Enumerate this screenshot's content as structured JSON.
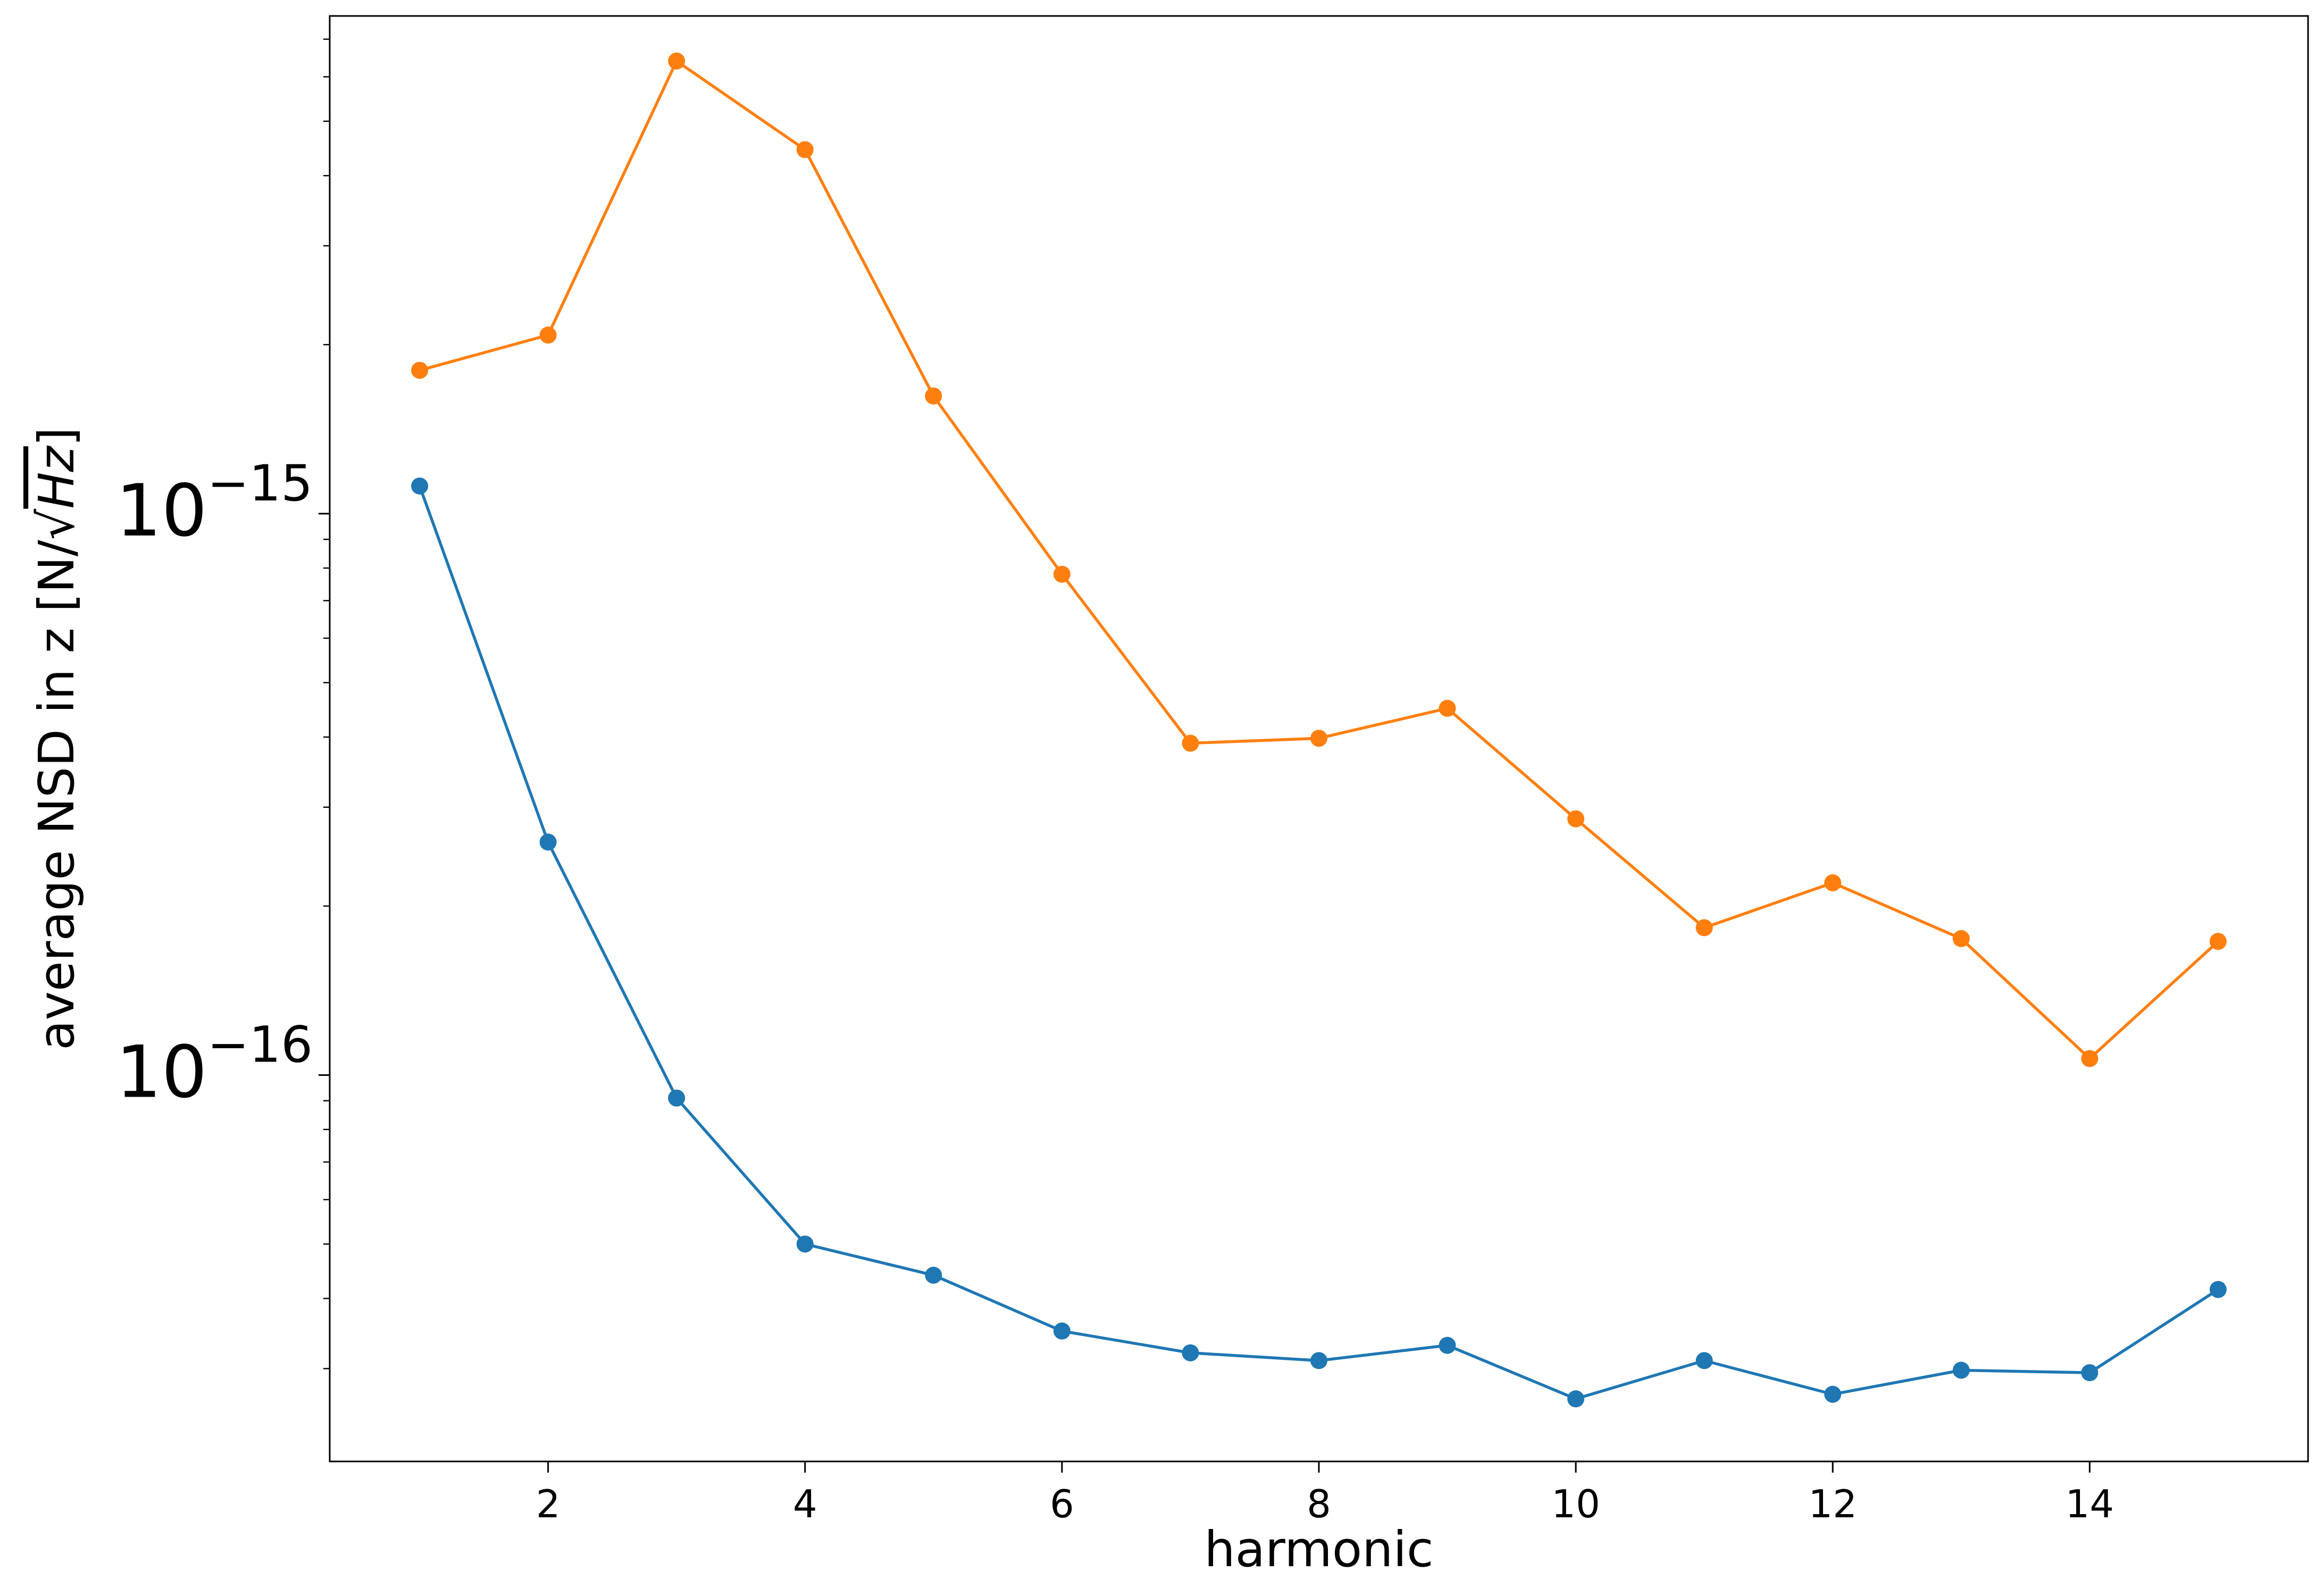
{
  "chart_data": {
    "type": "line",
    "xlabel": "harmonic",
    "ylabel": "average NSD in z [N/√Hz]",
    "ylabel_parts": {
      "prefix": "average NSD in z [N/",
      "radical": "√",
      "radicand": "Hz",
      "suffix": "]"
    },
    "x": [
      1,
      2,
      3,
      4,
      5,
      6,
      7,
      8,
      9,
      10,
      11,
      12,
      13,
      14,
      15
    ],
    "xlim": [
      0.3,
      15.7
    ],
    "ylim": [
      2.05e-17,
      7.7e-15
    ],
    "yscale": "log",
    "grid": false,
    "xticks": [
      2,
      4,
      6,
      8,
      10,
      12,
      14
    ],
    "xtick_labels": [
      "2",
      "4",
      "6",
      "8",
      "10",
      "12",
      "14"
    ],
    "yticks_major": [
      {
        "value": 1e-16,
        "base": "10",
        "exponent": "−16"
      },
      {
        "value": 1e-15,
        "base": "10",
        "exponent": "−15"
      }
    ],
    "series": [
      {
        "color": "#1f77b4",
        "values": [
          1.12e-15,
          2.6e-16,
          9.1e-17,
          5e-17,
          4.4e-17,
          3.5e-17,
          3.2e-17,
          3.1e-17,
          3.3e-17,
          2.65e-17,
          3.1e-17,
          2.7e-17,
          2.98e-17,
          2.95e-17,
          4.15e-17
        ]
      },
      {
        "color": "#ff7f0e",
        "values": [
          1.8e-15,
          2.08e-15,
          6.4e-15,
          4.45e-15,
          1.62e-15,
          7.8e-16,
          3.9e-16,
          3.98e-16,
          4.5e-16,
          2.86e-16,
          1.83e-16,
          2.2e-16,
          1.75e-16,
          1.07e-16,
          1.73e-16
        ]
      }
    ]
  }
}
